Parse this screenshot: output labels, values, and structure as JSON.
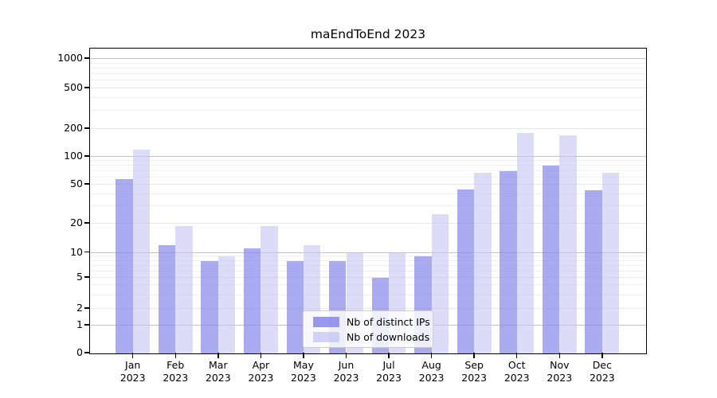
{
  "title": "maEndToEnd 2023",
  "chart_data": {
    "type": "bar",
    "title": "maEndToEnd 2023",
    "categories": [
      "Jan 2023",
      "Feb 2023",
      "Mar 2023",
      "Apr 2023",
      "May 2023",
      "Jun 2023",
      "Jul 2023",
      "Aug 2023",
      "Sep 2023",
      "Oct 2023",
      "Nov 2023",
      "Dec 2023"
    ],
    "series": [
      {
        "name": "Nb of distinct IPs",
        "color": "#8686e9",
        "fill_opacity": 0.7,
        "values": [
          58,
          12,
          8,
          11,
          8,
          8,
          5,
          9,
          45,
          70,
          80,
          44
        ]
      },
      {
        "name": "Nb of downloads",
        "color": "#c4c4f3",
        "fill_opacity": 0.6,
        "values": [
          120,
          19,
          9,
          19,
          12,
          10,
          10,
          25,
          67,
          180,
          170,
          67
        ]
      }
    ],
    "xlabel": "",
    "ylabel": "",
    "yscale": "symlog",
    "yticks": [
      0,
      1,
      2,
      5,
      10,
      20,
      50,
      100,
      200,
      500,
      1000
    ],
    "ylim": [
      0,
      1400
    ],
    "grid": true,
    "legend_position": "lower center"
  }
}
